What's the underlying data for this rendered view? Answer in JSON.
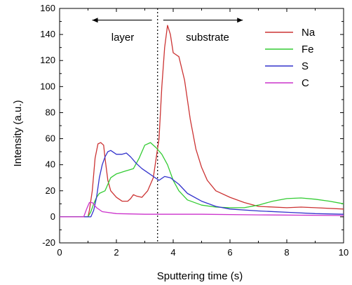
{
  "chart_data": {
    "type": "line",
    "title": "",
    "xlabel": "Sputtering time (s)",
    "ylabel": "Intensity (a.u.)",
    "xlim": [
      0,
      10
    ],
    "ylim": [
      -20,
      160
    ],
    "xticks": [
      0,
      2,
      4,
      6,
      8,
      10
    ],
    "yticks": [
      -20,
      0,
      20,
      40,
      60,
      80,
      100,
      120,
      140,
      160
    ],
    "grid": false,
    "legend_position": "top-right",
    "annotations": {
      "left_label": "layer",
      "right_label": "substrate",
      "divider_x": 3.45,
      "left_arrow_x": [
        3.25,
        1.15
      ],
      "right_arrow_x": [
        3.65,
        6.45
      ],
      "arrow_y": 151
    },
    "series": [
      {
        "name": "Na",
        "color": "#cc3333",
        "points": [
          [
            0,
            0
          ],
          [
            0.9,
            0
          ],
          [
            1.0,
            0
          ],
          [
            1.05,
            5
          ],
          [
            1.15,
            20
          ],
          [
            1.25,
            45
          ],
          [
            1.35,
            56
          ],
          [
            1.45,
            57
          ],
          [
            1.55,
            55
          ],
          [
            1.6,
            45
          ],
          [
            1.7,
            28
          ],
          [
            1.8,
            20
          ],
          [
            2.0,
            15
          ],
          [
            2.2,
            12
          ],
          [
            2.4,
            12
          ],
          [
            2.5,
            14
          ],
          [
            2.6,
            17
          ],
          [
            2.7,
            16
          ],
          [
            2.9,
            15
          ],
          [
            3.1,
            20
          ],
          [
            3.3,
            30
          ],
          [
            3.5,
            60
          ],
          [
            3.6,
            100
          ],
          [
            3.7,
            130
          ],
          [
            3.8,
            147
          ],
          [
            3.9,
            140
          ],
          [
            4.0,
            126
          ],
          [
            4.2,
            123
          ],
          [
            4.4,
            105
          ],
          [
            4.6,
            75
          ],
          [
            4.8,
            52
          ],
          [
            5.0,
            38
          ],
          [
            5.2,
            28
          ],
          [
            5.5,
            20
          ],
          [
            6.0,
            15
          ],
          [
            6.5,
            11
          ],
          [
            7.0,
            8
          ],
          [
            8.0,
            7
          ],
          [
            8.5,
            7.5
          ],
          [
            9.0,
            7
          ],
          [
            10,
            6
          ]
        ]
      },
      {
        "name": "Fe",
        "color": "#33cc33",
        "points": [
          [
            0,
            0
          ],
          [
            1.0,
            0
          ],
          [
            1.1,
            4
          ],
          [
            1.2,
            10
          ],
          [
            1.3,
            15
          ],
          [
            1.4,
            18
          ],
          [
            1.6,
            20
          ],
          [
            1.8,
            30
          ],
          [
            2.0,
            33
          ],
          [
            2.3,
            35
          ],
          [
            2.6,
            37
          ],
          [
            2.8,
            45
          ],
          [
            3.0,
            55
          ],
          [
            3.2,
            57
          ],
          [
            3.4,
            53
          ],
          [
            3.6,
            48
          ],
          [
            3.8,
            40
          ],
          [
            4.0,
            28
          ],
          [
            4.2,
            20
          ],
          [
            4.5,
            13
          ],
          [
            5.0,
            9
          ],
          [
            5.5,
            7.5
          ],
          [
            6.0,
            7
          ],
          [
            6.5,
            7
          ],
          [
            7.0,
            9
          ],
          [
            7.5,
            12
          ],
          [
            8.0,
            14
          ],
          [
            8.5,
            14.5
          ],
          [
            9.0,
            13.5
          ],
          [
            9.5,
            12
          ],
          [
            10,
            10
          ]
        ]
      },
      {
        "name": "S",
        "color": "#3333cc",
        "points": [
          [
            0,
            0
          ],
          [
            1.1,
            0
          ],
          [
            1.2,
            5
          ],
          [
            1.3,
            15
          ],
          [
            1.4,
            30
          ],
          [
            1.5,
            40
          ],
          [
            1.6,
            46
          ],
          [
            1.7,
            50
          ],
          [
            1.8,
            51
          ],
          [
            2.0,
            48
          ],
          [
            2.2,
            48
          ],
          [
            2.35,
            49
          ],
          [
            2.5,
            46
          ],
          [
            2.7,
            41
          ],
          [
            2.9,
            37
          ],
          [
            3.1,
            34
          ],
          [
            3.3,
            31
          ],
          [
            3.5,
            28
          ],
          [
            3.7,
            31
          ],
          [
            3.9,
            30
          ],
          [
            4.2,
            25
          ],
          [
            4.5,
            18
          ],
          [
            5.0,
            12
          ],
          [
            5.5,
            8
          ],
          [
            6.0,
            6
          ],
          [
            7.0,
            4.5
          ],
          [
            8.0,
            3.5
          ],
          [
            9.0,
            2.5
          ],
          [
            10,
            2
          ]
        ]
      },
      {
        "name": "C",
        "color": "#cc33cc",
        "points": [
          [
            0,
            0
          ],
          [
            0.85,
            0
          ],
          [
            0.95,
            6
          ],
          [
            1.05,
            11
          ],
          [
            1.15,
            11
          ],
          [
            1.3,
            7
          ],
          [
            1.5,
            4
          ],
          [
            2.0,
            2.5
          ],
          [
            3.0,
            2
          ],
          [
            5.0,
            2
          ],
          [
            7.0,
            1.5
          ],
          [
            10,
            1
          ]
        ]
      }
    ]
  }
}
